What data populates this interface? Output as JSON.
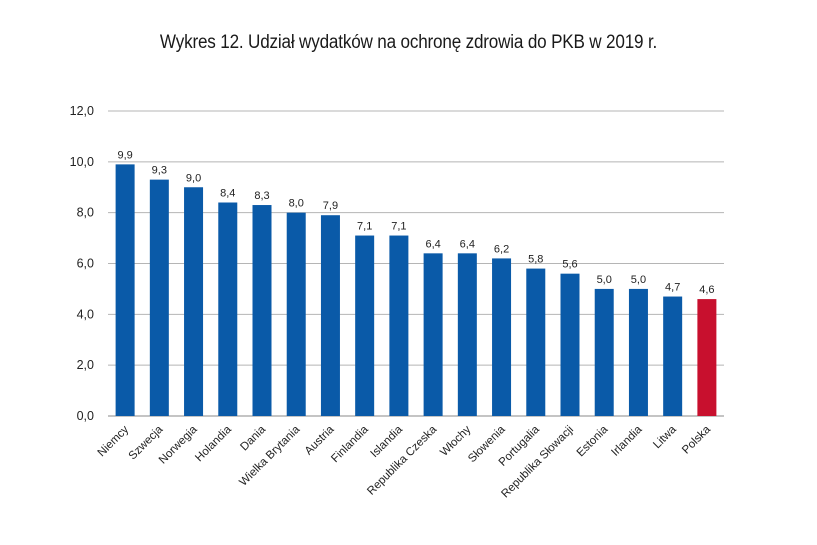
{
  "chart_data": {
    "type": "bar",
    "title": "Wykres 12. Udział wydatków na ochronę zdrowia do PKB w 2019 r.",
    "categories": [
      "Niemcy",
      "Szwecja",
      "Norwegia",
      "Holandia",
      "Dania",
      "Wielka Brytania",
      "Austria",
      "Finlandia",
      "Islandia",
      "Republika Czeska",
      "Włochy",
      "Słowenia",
      "Portugalia",
      "Republika Słowacji",
      "Estonia",
      "Irlandia",
      "Litwa",
      "Polska"
    ],
    "values": [
      9.9,
      9.3,
      9.0,
      8.4,
      8.3,
      8.0,
      7.9,
      7.1,
      7.1,
      6.4,
      6.4,
      6.2,
      5.8,
      5.6,
      5.0,
      5.0,
      4.7,
      4.6
    ],
    "value_labels": [
      "9,9",
      "9,3",
      "9,0",
      "8,4",
      "8,3",
      "8,0",
      "7,9",
      "7,1",
      "7,1",
      "6,4",
      "6,4",
      "6,2",
      "5,8",
      "5,6",
      "5,0",
      "5,0",
      "4,7",
      "4,6"
    ],
    "y_ticks": [
      0,
      2,
      4,
      6,
      8,
      10,
      12
    ],
    "y_tick_labels": [
      "0,0",
      "2,0",
      "4,0",
      "6,0",
      "8,0",
      "10,0",
      "12,0"
    ],
    "ylim": [
      0,
      12
    ],
    "grid": true,
    "colors": {
      "bar": "#0a5aa8",
      "highlight": "#c8102e",
      "grid": "#b5b5b5"
    },
    "highlight_index": 17
  }
}
